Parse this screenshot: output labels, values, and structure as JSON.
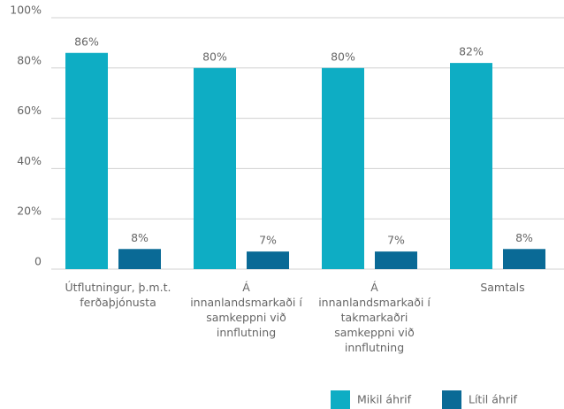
{
  "chart_data": {
    "type": "bar",
    "categories": [
      "Útflutningur, þ.m.t. ferðaþjónusta",
      "Á innanlandsmarkaði í samkeppni við innflutning",
      "Á innanlandsmarkaði í takmarkaðri samkeppni við innflutning",
      "Samtals"
    ],
    "series": [
      {
        "name": "Mikil áhrif",
        "color": "#0eadc4",
        "values": [
          86,
          80,
          80,
          82
        ],
        "value_labels": [
          "86%",
          "80%",
          "80%",
          "82%"
        ]
      },
      {
        "name": "Lítil áhrif",
        "color": "#0a6a96",
        "values": [
          8,
          7,
          7,
          8
        ],
        "value_labels": [
          "8%",
          "7%",
          "7%",
          "8%"
        ]
      }
    ],
    "ylim": [
      0,
      100
    ],
    "yticks": [
      0,
      {
        "value": 20,
        "label": "20%"
      },
      {
        "value": 40,
        "label": "40%"
      },
      {
        "value": 60,
        "label": "60%"
      },
      {
        "value": 80,
        "label": "80%"
      },
      {
        "value": 100,
        "label": "100%"
      }
    ],
    "grid": true,
    "legend": "bottom-right"
  }
}
